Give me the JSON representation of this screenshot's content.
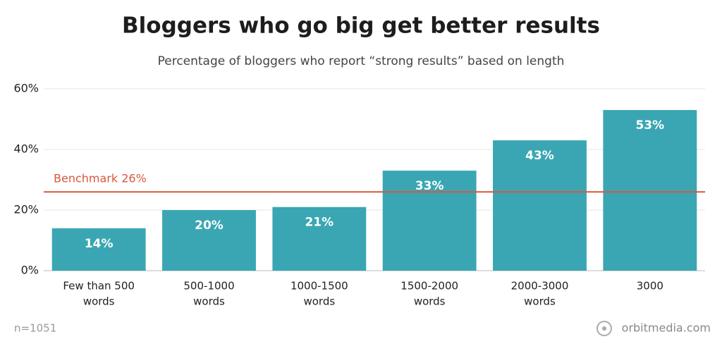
{
  "chart_data": {
    "type": "bar",
    "title": "Bloggers who go big get better results",
    "subtitle": "Percentage of bloggers who report “strong results” based on length",
    "categories": [
      [
        "Few than 500",
        "words"
      ],
      [
        "500-1000",
        "words"
      ],
      [
        "1000-1500",
        "words"
      ],
      [
        "1500-2000",
        "words"
      ],
      [
        "2000-3000",
        "words"
      ],
      [
        "3000"
      ]
    ],
    "values": [
      14,
      20,
      21,
      33,
      43,
      53
    ],
    "value_labels": [
      "14%",
      "20%",
      "21%",
      "33%",
      "43%",
      "53%"
    ],
    "color": "#3aa6b3",
    "ylim": [
      0,
      60
    ],
    "yticks": [
      {
        "value": 0,
        "label": "0%"
      },
      {
        "value": 20,
        "label": "20%"
      },
      {
        "value": 40,
        "label": "40%"
      },
      {
        "value": 60,
        "label": "60%"
      }
    ],
    "grid": true,
    "benchmark": {
      "label": "Benchmark 26%",
      "value": 26,
      "color": "#d9573f"
    },
    "note": "n=1051",
    "source": "orbitmedia.com"
  }
}
